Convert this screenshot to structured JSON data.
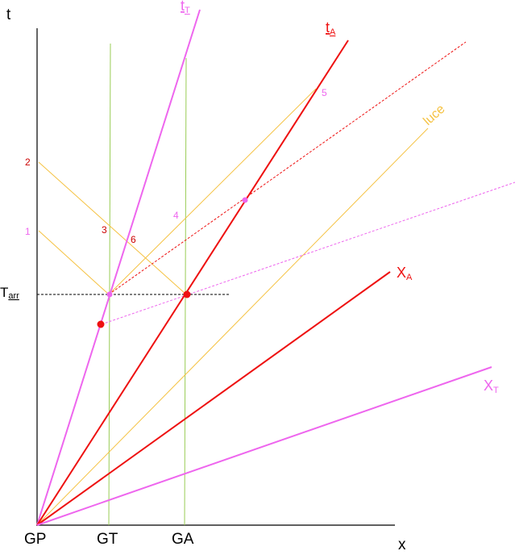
{
  "colors": {
    "red": "#ee1111",
    "magenta": "#ee66ee",
    "yellow": "#f5c242",
    "green": "#99cc55",
    "black": "#000000",
    "label_red": "#cc0000"
  },
  "axes": {
    "y_label": "t",
    "x_label": "x",
    "origin_label": "GP",
    "gt_label": "GT",
    "ga_label": "GA"
  },
  "lines": {
    "tT": {
      "main": "t",
      "sub": "T"
    },
    "tA": {
      "main": "t",
      "sub": "A"
    },
    "xA": {
      "main": "X",
      "sub": "A"
    },
    "xT": {
      "main": "X",
      "sub": "T"
    },
    "luce": "luce"
  },
  "tarr": {
    "main": "T",
    "sub": "arr"
  },
  "event_numbers": {
    "n1": "1",
    "n2": "2",
    "n3": "3",
    "n4": "4",
    "n5": "5",
    "n6": "6"
  }
}
